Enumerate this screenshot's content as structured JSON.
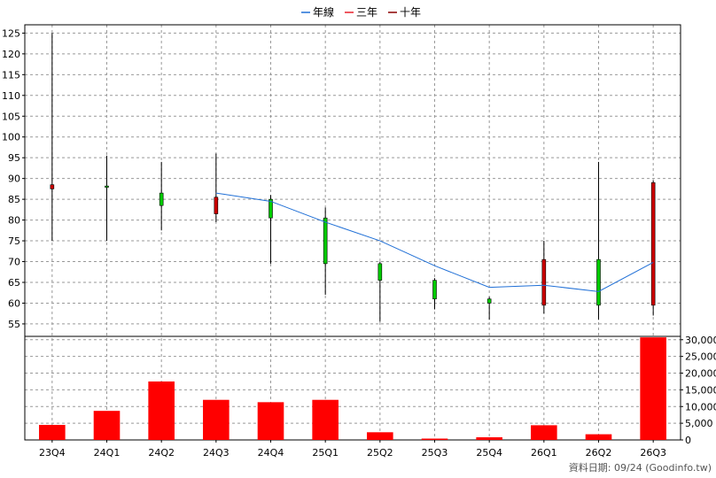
{
  "chart_data": {
    "type": "candlestick",
    "legend": {
      "placement": "top-center",
      "items": [
        {
          "label": "年線",
          "color": "#1f6fd6"
        },
        {
          "label": "三年",
          "color": "#e8202a"
        },
        {
          "label": "十年",
          "color": "#8b0000"
        }
      ]
    },
    "categories": [
      "23Q4",
      "24Q1",
      "24Q2",
      "24Q3",
      "24Q4",
      "25Q1",
      "25Q2",
      "25Q3",
      "25Q4",
      "26Q1",
      "26Q2",
      "26Q3"
    ],
    "price_axis": {
      "ylim": [
        52,
        127
      ],
      "ticks": [
        55,
        60,
        65,
        70,
        75,
        80,
        85,
        90,
        95,
        100,
        105,
        110,
        115,
        120,
        125
      ]
    },
    "ohlc": [
      {
        "open": 88.5,
        "high": 125,
        "low": 75,
        "close": 87.5
      },
      {
        "open": 88.2,
        "high": 95.5,
        "low": 75,
        "close": 88.2
      },
      {
        "open": 83.5,
        "high": 94,
        "low": 77.5,
        "close": 86.5
      },
      {
        "open": 85.5,
        "high": 96,
        "low": 79.5,
        "close": 81.5
      },
      {
        "open": 80.5,
        "high": 86,
        "low": 69.5,
        "close": 85
      },
      {
        "open": 69.5,
        "high": 83,
        "low": 62,
        "close": 80.5
      },
      {
        "open": 65.5,
        "high": 70,
        "low": 55.5,
        "close": 69.5
      },
      {
        "open": 61,
        "high": 66,
        "low": 58.5,
        "close": 65.5
      },
      {
        "open": 60,
        "high": 61.5,
        "low": 56,
        "close": 61
      },
      {
        "open": 70.5,
        "high": 75,
        "low": 57.5,
        "close": 59.5
      },
      {
        "open": 59.5,
        "high": 94,
        "low": 56,
        "close": 70.5
      },
      {
        "open": 89,
        "high": 89.5,
        "low": 57,
        "close": 59.5
      }
    ],
    "year_line": {
      "name": "年線",
      "start_index": 3,
      "values": [
        86.5,
        84.5,
        79.5,
        75,
        69,
        63.8,
        64.3,
        62.8,
        69.8
      ]
    },
    "volume_axis": {
      "ylim": [
        0,
        31000
      ],
      "ticks": [
        0,
        5000,
        10000,
        15000,
        20000,
        25000,
        30000
      ],
      "tick_labels": [
        "0",
        "5,000",
        "10,000",
        "15,000",
        "20,000",
        "25,000",
        "30,000"
      ]
    },
    "volume": [
      4500,
      8700,
      17500,
      12000,
      11300,
      12000,
      2300,
      400,
      800,
      4400,
      1700,
      30700
    ],
    "colors": {
      "up": "#00cc00",
      "down": "#cc0000",
      "volume": "#ff0000",
      "grid": "#999999"
    },
    "grid": true
  },
  "footer": {
    "credit": "資料日期: 09/24  (Goodinfo.tw)"
  }
}
